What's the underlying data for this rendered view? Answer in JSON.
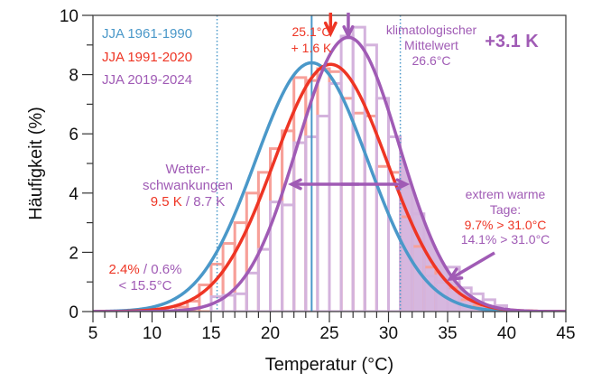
{
  "chart_data": {
    "type": "line",
    "title": "",
    "xlabel": "Temperatur (°C)",
    "ylabel": "Häufigkeit (%)",
    "xlim": [
      5,
      45
    ],
    "ylim": [
      0,
      10
    ],
    "xticks": [
      5,
      10,
      15,
      20,
      25,
      30,
      35,
      40,
      45
    ],
    "yticks": [
      0,
      2,
      4,
      6,
      8,
      10
    ],
    "grid": false,
    "legend_position": "top-left",
    "colors": {
      "blue": "#4a98c9",
      "red": "#ee3524",
      "purple": "#a05bb5",
      "red_hist": "#f7a099",
      "purple_hist": "#d4b3dd",
      "purple_fill": "#d4b3dd"
    },
    "legend": [
      {
        "label": "JJA 1961-1990",
        "color": "#4a98c9"
      },
      {
        "label": "JJA 1991-2020",
        "color": "#ee3524"
      },
      {
        "label": "JJA 2019-2024",
        "color": "#a05bb5"
      }
    ],
    "series": [
      {
        "name": "JJA 1961-1990",
        "kind": "gaussian",
        "mean": 23.5,
        "sd": 4.75,
        "color": "#4a98c9"
      },
      {
        "name": "JJA 1991-2020",
        "kind": "gaussian",
        "mean": 25.1,
        "sd": 4.78,
        "color": "#ee3524"
      },
      {
        "name": "JJA 2019-2024",
        "kind": "gaussian",
        "mean": 26.6,
        "sd": 4.31,
        "color": "#a05bb5"
      }
    ],
    "histograms": [
      {
        "name": "JJA 1991-2020",
        "color": "#f7a099",
        "bin_start": 12,
        "bin_width": 1,
        "values": [
          0.15,
          0.35,
          0.9,
          1.6,
          2.3,
          3.0,
          4.0,
          4.7,
          5.5,
          6.1,
          7.9,
          7.8,
          8.2,
          8.1,
          7.2,
          6.7,
          6.6,
          4.9,
          4.7,
          3.2,
          2.2,
          1.5,
          1.0,
          0.8,
          0.4,
          0.2,
          0.1,
          0.0
        ]
      },
      {
        "name": "JJA 2019-2024",
        "color": "#d4b3dd",
        "bin_start": 12,
        "bin_width": 1,
        "values": [
          0.0,
          0.0,
          0.0,
          0.5,
          0.55,
          0.6,
          1.3,
          2.1,
          3.7,
          3.6,
          5.7,
          5.9,
          6.6,
          7.7,
          9.3,
          9.6,
          9.0,
          7.2,
          5.9,
          4.2,
          3.3,
          1.2,
          1.0,
          1.5,
          0.8,
          0.6,
          0.4,
          0.2
        ]
      }
    ],
    "reference_lines": [
      {
        "x": 23.5,
        "style": "solid",
        "color": "#4a98c9"
      },
      {
        "x": 15.5,
        "style": "dotted",
        "color": "#4a98c9"
      },
      {
        "x": 31.0,
        "style": "dotted",
        "color": "#4a98c9"
      }
    ],
    "shaded_region": {
      "from": 31.0,
      "series": "JJA 2019-2024",
      "color": "#d4b3dd"
    },
    "annotations": {
      "red_mean": [
        "25.1°C",
        "+ 1.6 K"
      ],
      "climatological": [
        "klimatologischer",
        "Mittelwert",
        "26.6°C"
      ],
      "delta": "+3.1 K",
      "variability_title": [
        "Wetter-",
        "schwankungen"
      ],
      "variability_red": "9.5 K",
      "variability_sep": " / ",
      "variability_purple": "8.7 K",
      "cold_red": "2.4%",
      "cold_sep": " / ",
      "cold_purple": "0.6%",
      "cold_threshold": "< 15.5°C",
      "hot_title": [
        "extrem warme",
        "Tage:"
      ],
      "hot_red": "9.7% > 31.0°C",
      "hot_purple": "14.1% > 31.0°C"
    }
  }
}
